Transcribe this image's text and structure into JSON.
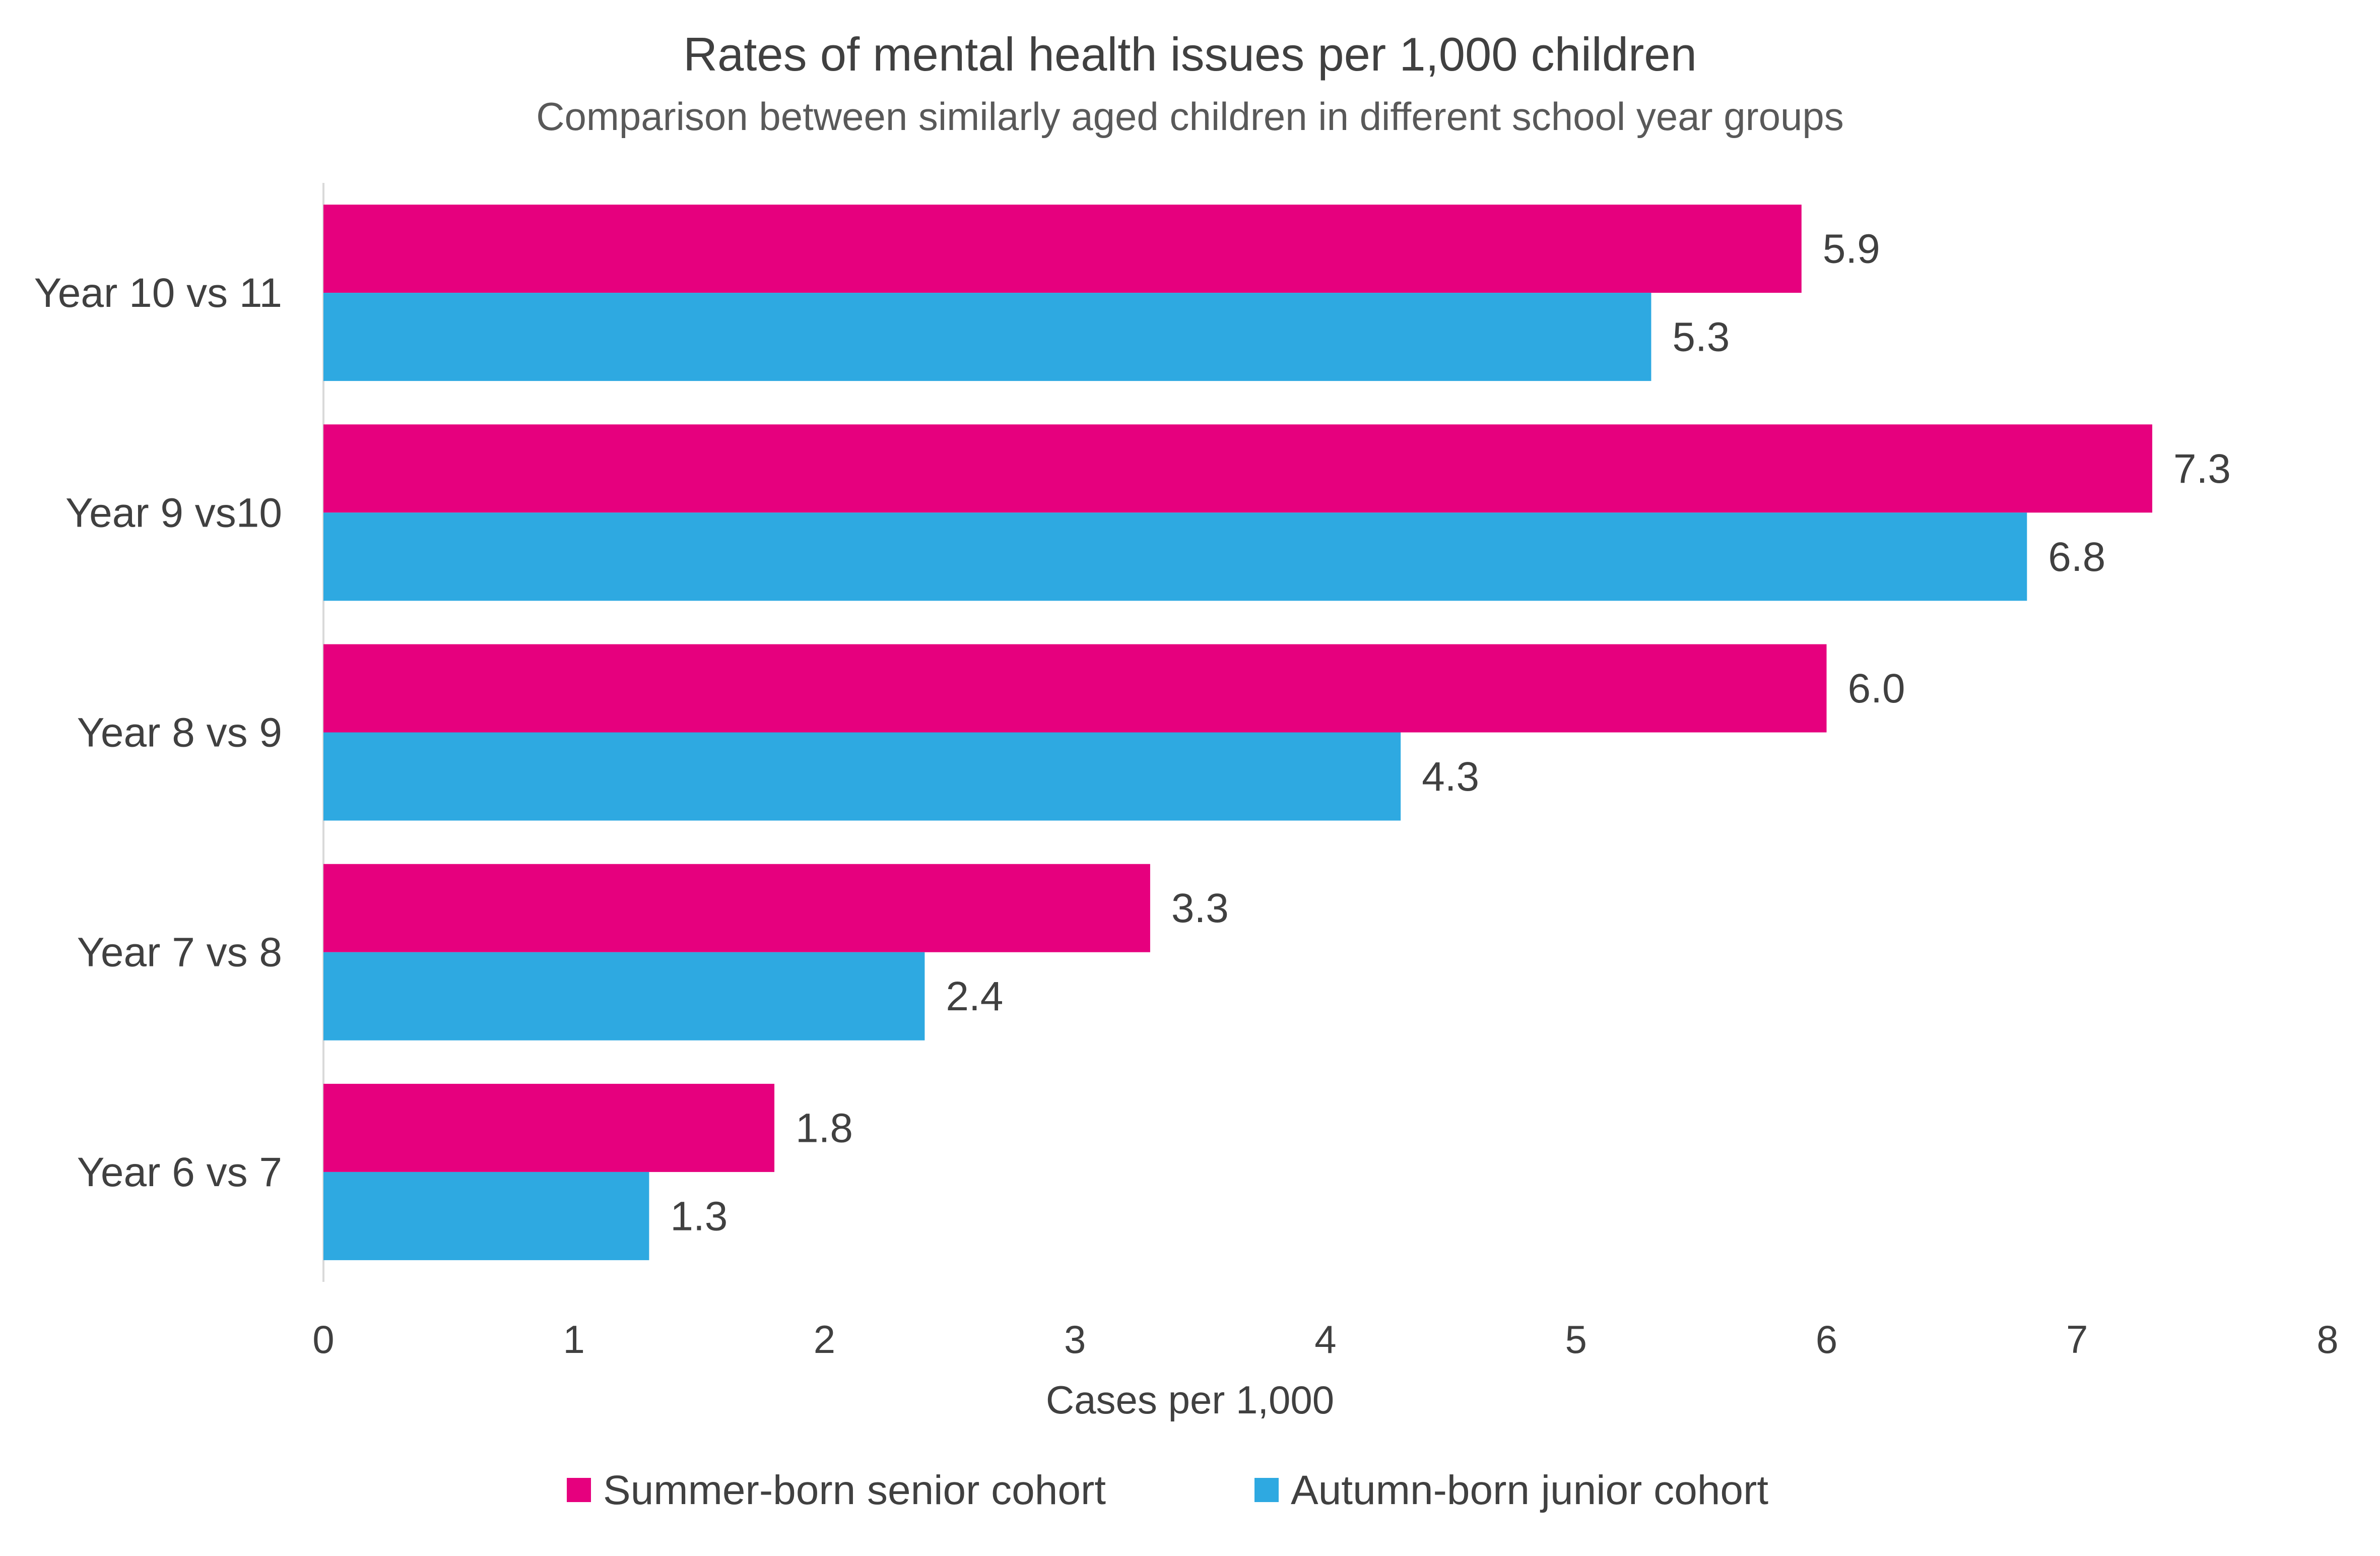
{
  "chart_data": {
    "type": "bar",
    "orientation": "horizontal",
    "title": "Rates of mental health issues per 1,000 children",
    "subtitle": "Comparison between similarly aged children in different school year groups",
    "xlabel": "Cases per 1,000",
    "ylabel": "",
    "xlim": [
      0,
      8
    ],
    "x_ticks": [
      "0",
      "1",
      "2",
      "3",
      "4",
      "5",
      "6",
      "7",
      "8"
    ],
    "grid": false,
    "legend_position": "bottom",
    "categories": [
      "Year 10 vs 11",
      "Year 9 vs10",
      "Year 8 vs 9",
      "Year 7 vs 8",
      "Year 6 vs 7"
    ],
    "series": [
      {
        "name": "Summer-born senior cohort",
        "color": "#E6007E",
        "values": [
          5.9,
          7.3,
          6.0,
          3.3,
          1.8
        ],
        "labels": [
          "5.9",
          "7.3",
          "6.0",
          "3.3",
          "1.8"
        ]
      },
      {
        "name": "Autumn-born junior cohort",
        "color": "#2EA9E1",
        "values": [
          5.3,
          6.8,
          4.3,
          2.4,
          1.3
        ],
        "labels": [
          "5.3",
          "6.8",
          "4.3",
          "2.4",
          "1.3"
        ]
      }
    ]
  },
  "colors": {
    "axis_line": "#D9D9D9"
  }
}
